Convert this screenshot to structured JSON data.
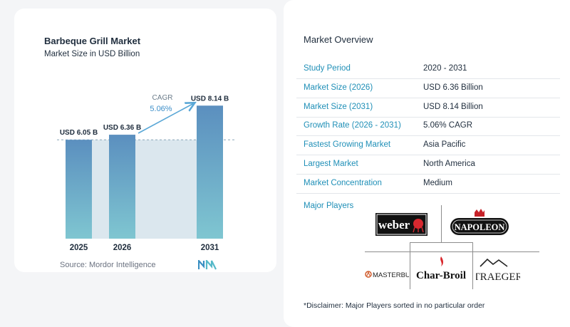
{
  "chart_data": {
    "type": "bar",
    "title": "Barbeque Grill Market",
    "subtitle": "Market Size in USD Billion",
    "categories": [
      "2025",
      "2026",
      "2031"
    ],
    "values": [
      6.05,
      6.36,
      8.14
    ],
    "value_labels": [
      "USD 6.05 B",
      "USD 6.36 B",
      "USD 8.14 B"
    ],
    "cagr_label": "CAGR",
    "cagr_value": "5.06%",
    "ylim": [
      0,
      8.5
    ],
    "colors": {
      "bar_top": "#5b8fbf",
      "bar_bottom": "#7fc6d1",
      "shade": "#dbe7ee",
      "arrow": "#5aa7d6"
    }
  },
  "source": "Source:  Mordor Intelligence",
  "overview": {
    "title": "Market Overview",
    "rows": [
      {
        "label": "Study Period",
        "value": "2020 - 2031"
      },
      {
        "label": "Market Size (2026)",
        "value": "USD 6.36 Billion"
      },
      {
        "label": "Market Size (2031)",
        "value": "USD 8.14 Billion"
      },
      {
        "label": "Growth Rate (2026 - 2031)",
        "value": "5.06% CAGR"
      },
      {
        "label": "Fastest Growing Market",
        "value": "Asia Pacific"
      },
      {
        "label": "Largest Market",
        "value": "North America"
      },
      {
        "label": "Market Concentration",
        "value": "Medium"
      }
    ]
  },
  "players": {
    "title": "Major Players",
    "logos": [
      "weber",
      "NAPOLEON",
      "MASTERBUILT",
      "Char-Broil",
      "TRAEGER"
    ]
  },
  "disclaimer": "*Disclaimer: Major Players sorted in no particular order"
}
